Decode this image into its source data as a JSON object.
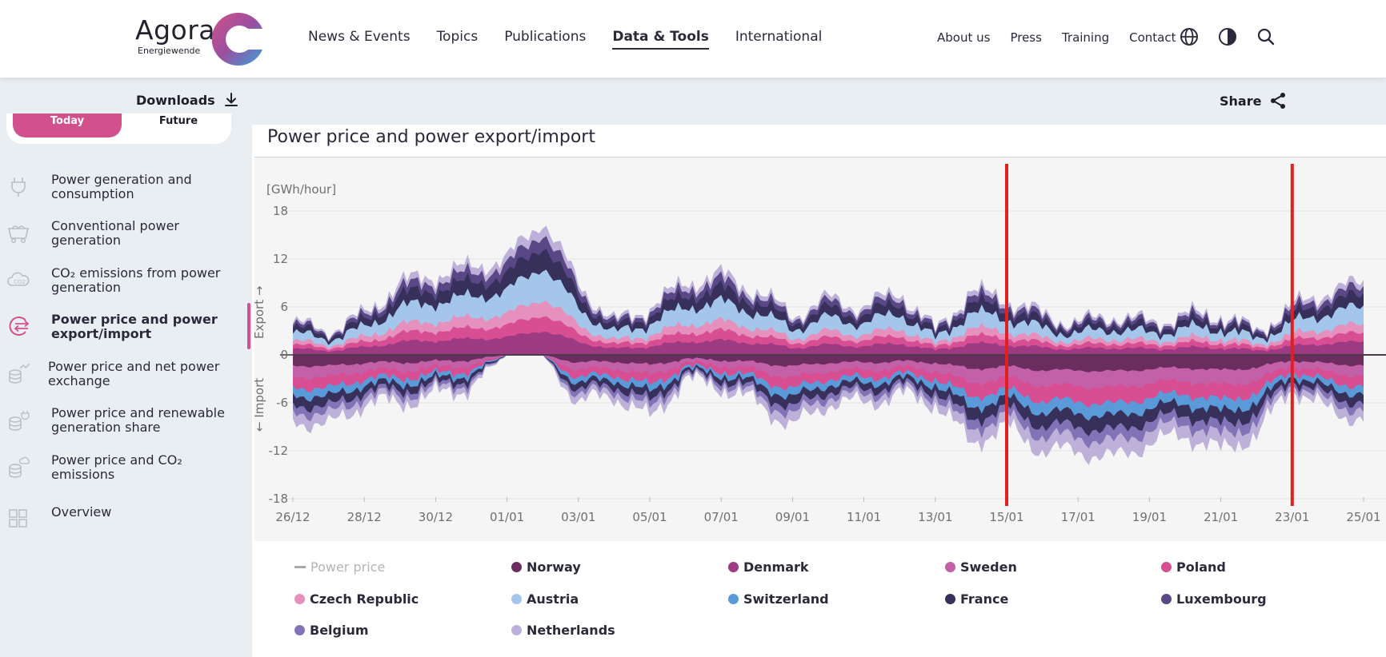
{
  "brand": {
    "name": "Agora",
    "sub": "Energiewende"
  },
  "nav": {
    "main": [
      "News & Events",
      "Topics",
      "Publications",
      "Data & Tools",
      "International"
    ],
    "active": "Data & Tools",
    "right": [
      "About us",
      "Press",
      "Training",
      "Contact"
    ],
    "icons": [
      "globe-icon",
      "contrast-icon",
      "search-icon"
    ]
  },
  "toolbar": {
    "downloads": "Downloads",
    "share": "Share"
  },
  "toggle": {
    "left": "Today",
    "right": "Future"
  },
  "sidebar": {
    "items": [
      {
        "label": "Power generation and consumption",
        "icon": "plug-icon"
      },
      {
        "label": "Conventional power generation",
        "icon": "coal-cart-icon"
      },
      {
        "label": "CO₂ emissions from power generation",
        "icon": "cloud-co2-icon"
      },
      {
        "label": "Power price and power export/import",
        "icon": "exchange-icon",
        "active": true
      },
      {
        "label": "Power price and net power exchange",
        "icon": "coins-chart-icon"
      },
      {
        "label": "Power price and renewable generation share",
        "icon": "coins-plug-icon"
      },
      {
        "label": "Power price and CO₂ emissions",
        "icon": "coins-cloud-icon"
      },
      {
        "label": "Overview",
        "icon": "grid-icon"
      }
    ]
  },
  "colors": {
    "accent": "#d2508c",
    "marker": "#e02020",
    "Norway": "#6b2d5e",
    "Denmark": "#9c3a82",
    "Sweden": "#c260a8",
    "Poland": "#d84e93",
    "Czech Republic": "#e590bd",
    "Austria": "#a4c6ea",
    "Switzerland": "#5a9ad8",
    "France": "#36305a",
    "Luxembourg": "#5a4886",
    "Belgium": "#8273b6",
    "Netherlands": "#bdb1d9"
  },
  "chart_data": {
    "type": "area",
    "title": "Power price and power export/import",
    "unit_label": "[GWh/hour]",
    "ylabel_up": "Export →",
    "ylabel_down": "← Import",
    "ylim": [
      -18,
      18
    ],
    "y_ticks": [
      "18",
      "12",
      "6",
      "0",
      "-6",
      "-12",
      "-18"
    ],
    "x_ticks": [
      "26/12",
      "28/12",
      "30/12",
      "01/01",
      "03/01",
      "05/01",
      "07/01",
      "09/01",
      "11/01",
      "13/01",
      "15/01",
      "17/01",
      "19/01",
      "21/01",
      "23/01",
      "25/01"
    ],
    "series_names": [
      "Norway",
      "Denmark",
      "Sweden",
      "Poland",
      "Czech Republic",
      "Austria",
      "Switzerland",
      "France",
      "Luxembourg",
      "Belgium",
      "Netherlands"
    ],
    "total_export": [
      {
        "date": "26/12",
        "value": 4
      },
      {
        "date": "27/12",
        "value": 3
      },
      {
        "date": "28/12",
        "value": 5
      },
      {
        "date": "29/12",
        "value": 9
      },
      {
        "date": "30/12",
        "value": 10
      },
      {
        "date": "31/12",
        "value": 11
      },
      {
        "date": "01/01",
        "value": 12
      },
      {
        "date": "02/01",
        "value": 17
      },
      {
        "date": "03/01",
        "value": 9
      },
      {
        "date": "04/01",
        "value": 4
      },
      {
        "date": "05/01",
        "value": 6
      },
      {
        "date": "06/01",
        "value": 9
      },
      {
        "date": "07/01",
        "value": 10
      },
      {
        "date": "08/01",
        "value": 8
      },
      {
        "date": "09/01",
        "value": 5
      },
      {
        "date": "10/01",
        "value": 7
      },
      {
        "date": "11/01",
        "value": 6
      },
      {
        "date": "12/01",
        "value": 8
      },
      {
        "date": "13/01",
        "value": 3
      },
      {
        "date": "14/01",
        "value": 8
      },
      {
        "date": "15/01",
        "value": 7
      },
      {
        "date": "16/01",
        "value": 5
      },
      {
        "date": "17/01",
        "value": 4
      },
      {
        "date": "18/01",
        "value": 5
      },
      {
        "date": "19/01",
        "value": 4
      },
      {
        "date": "20/01",
        "value": 5
      },
      {
        "date": "21/01",
        "value": 5
      },
      {
        "date": "22/01",
        "value": 3
      },
      {
        "date": "23/01",
        "value": 6
      },
      {
        "date": "24/01",
        "value": 8
      },
      {
        "date": "25/01",
        "value": 9
      }
    ],
    "total_import": [
      {
        "date": "26/12",
        "value": -8
      },
      {
        "date": "27/12",
        "value": -9
      },
      {
        "date": "28/12",
        "value": -6
      },
      {
        "date": "29/12",
        "value": -6
      },
      {
        "date": "30/12",
        "value": -5
      },
      {
        "date": "31/12",
        "value": -4
      },
      {
        "date": "01/01",
        "value": 0
      },
      {
        "date": "02/01",
        "value": 0
      },
      {
        "date": "03/01",
        "value": -6
      },
      {
        "date": "04/01",
        "value": -5
      },
      {
        "date": "05/01",
        "value": -8
      },
      {
        "date": "06/01",
        "value": -3
      },
      {
        "date": "07/01",
        "value": -4
      },
      {
        "date": "08/01",
        "value": -6
      },
      {
        "date": "09/01",
        "value": -9
      },
      {
        "date": "10/01",
        "value": -6
      },
      {
        "date": "11/01",
        "value": -6
      },
      {
        "date": "12/01",
        "value": -5
      },
      {
        "date": "13/01",
        "value": -6
      },
      {
        "date": "14/01",
        "value": -11
      },
      {
        "date": "15/01",
        "value": -9
      },
      {
        "date": "16/01",
        "value": -12
      },
      {
        "date": "17/01",
        "value": -12
      },
      {
        "date": "18/01",
        "value": -13
      },
      {
        "date": "19/01",
        "value": -11
      },
      {
        "date": "20/01",
        "value": -10
      },
      {
        "date": "21/01",
        "value": -12
      },
      {
        "date": "22/01",
        "value": -10
      },
      {
        "date": "23/01",
        "value": -4
      },
      {
        "date": "24/01",
        "value": -7
      },
      {
        "date": "25/01",
        "value": -8
      }
    ],
    "highlight_markers": [
      "15/01",
      "23/01"
    ],
    "legend_position": "bottom",
    "grid": true
  },
  "legend": [
    {
      "label": "Power price",
      "kind": "line",
      "muted": true
    },
    {
      "label": "Norway",
      "kind": "dot"
    },
    {
      "label": "Denmark",
      "kind": "dot"
    },
    {
      "label": "Sweden",
      "kind": "dot"
    },
    {
      "label": "Poland",
      "kind": "dot"
    },
    {
      "label": "Czech Republic",
      "kind": "dot"
    },
    {
      "label": "Austria",
      "kind": "dot"
    },
    {
      "label": "Switzerland",
      "kind": "dot"
    },
    {
      "label": "France",
      "kind": "dot"
    },
    {
      "label": "Luxembourg",
      "kind": "dot"
    },
    {
      "label": "Belgium",
      "kind": "dot"
    },
    {
      "label": "Netherlands",
      "kind": "dot"
    }
  ]
}
